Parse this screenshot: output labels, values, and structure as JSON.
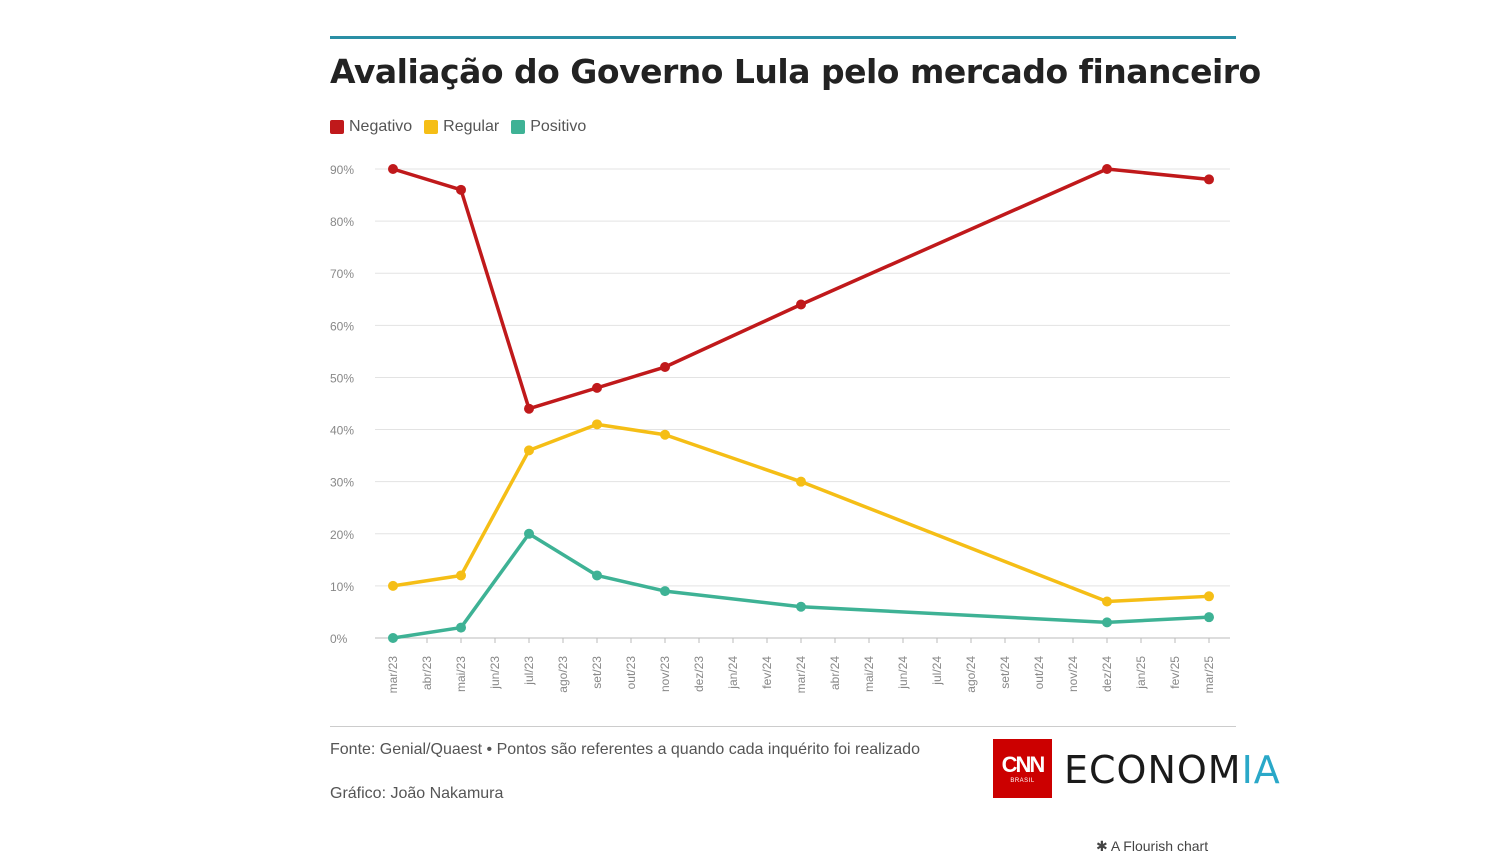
{
  "header": {
    "title": "Avaliação do Governo Lula pelo mercado financeiro"
  },
  "legend": [
    {
      "label": "Negativo",
      "color": "#c0191b"
    },
    {
      "label": "Regular",
      "color": "#f5be16"
    },
    {
      "label": "Positivo",
      "color": "#3eb295"
    }
  ],
  "chart_data": {
    "type": "line",
    "title": "Avaliação do Governo Lula pelo mercado financeiro",
    "xlabel": "",
    "ylabel": "",
    "ylim": [
      0,
      90
    ],
    "yticks": [
      0,
      10,
      20,
      30,
      40,
      50,
      60,
      70,
      80,
      90
    ],
    "ytick_labels": [
      "0%",
      "10%",
      "20%",
      "30%",
      "40%",
      "50%",
      "60%",
      "70%",
      "80%",
      "90%"
    ],
    "categories": [
      "mar/23",
      "abr/23",
      "mai/23",
      "jun/23",
      "jul/23",
      "ago/23",
      "set/23",
      "out/23",
      "nov/23",
      "dez/23",
      "jan/24",
      "fev/24",
      "mar/24",
      "abr/24",
      "mai/24",
      "jun/24",
      "jul/24",
      "ago/24",
      "set/24",
      "out/24",
      "nov/24",
      "dez/24",
      "jan/25",
      "fev/25",
      "mar/25"
    ],
    "x_label_indices": [
      0,
      1,
      2,
      3,
      4,
      5,
      6,
      7,
      8,
      9,
      10,
      11,
      12,
      13,
      14,
      15,
      16,
      17,
      18,
      19,
      20,
      21,
      22,
      23,
      24
    ],
    "series": [
      {
        "name": "Negativo",
        "color": "#c0191b",
        "points": [
          [
            0,
            90
          ],
          [
            2,
            86
          ],
          [
            4,
            44
          ],
          [
            6,
            48
          ],
          [
            8,
            52
          ],
          [
            12,
            64
          ],
          [
            21,
            90
          ],
          [
            24,
            88
          ]
        ]
      },
      {
        "name": "Regular",
        "color": "#f5be16",
        "points": [
          [
            0,
            10
          ],
          [
            2,
            12
          ],
          [
            4,
            36
          ],
          [
            6,
            41
          ],
          [
            8,
            39
          ],
          [
            12,
            30
          ],
          [
            21,
            7
          ],
          [
            24,
            8
          ]
        ]
      },
      {
        "name": "Positivo",
        "color": "#3eb295",
        "points": [
          [
            0,
            0
          ],
          [
            2,
            2
          ],
          [
            4,
            20
          ],
          [
            6,
            12
          ],
          [
            8,
            9
          ],
          [
            12,
            6
          ],
          [
            21,
            3
          ],
          [
            24,
            4
          ]
        ]
      }
    ],
    "grid": true,
    "legend_position": "top-left"
  },
  "footer": {
    "source": "Fonte: Genial/Quaest • Pontos são referentes a quando cada inquérito foi realizado",
    "credit": "Gráfico: João Nakamura",
    "logo_text": "CNN",
    "logo_sub": "BRASIL",
    "brand_main": "ECONOM",
    "brand_accent": "IA",
    "datawrapper": "✱ A Flourish chart"
  }
}
